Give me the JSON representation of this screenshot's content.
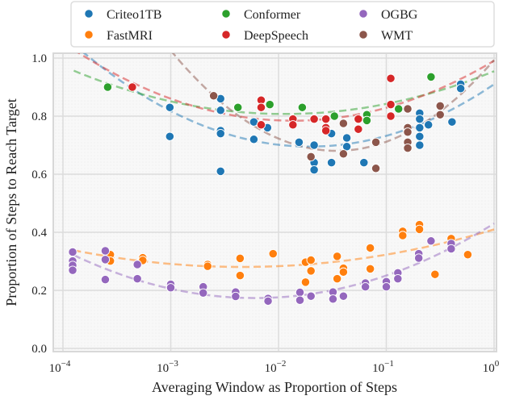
{
  "chart_data": {
    "type": "scatter",
    "xlabel": "Averaging Window as Proportion of Steps",
    "ylabel": "Proportion of Steps to Reach Target",
    "xscale": "log",
    "xlim": [
      8e-05,
      1.0
    ],
    "ylim": [
      0.0,
      1.0
    ],
    "xticks": [
      {
        "value": 0.0001,
        "base": "10",
        "exp": "−4"
      },
      {
        "value": 0.001,
        "base": "10",
        "exp": "−3"
      },
      {
        "value": 0.01,
        "base": "10",
        "exp": "−2"
      },
      {
        "value": 0.1,
        "base": "10",
        "exp": "−1"
      },
      {
        "value": 1,
        "base": "10",
        "exp": "0"
      }
    ],
    "yticks": [
      "0.0",
      "0.2",
      "0.4",
      "0.6",
      "0.8",
      "1.0"
    ],
    "grid": true,
    "legend_placement": "top",
    "trendlines": "dashed quadratic fit in log10(x) per series",
    "series": [
      {
        "name": "Criteo1TB",
        "color": "#1f77b4",
        "points": [
          [
            0.00098,
            0.83
          ],
          [
            0.00098,
            0.73
          ],
          [
            0.0029,
            0.86
          ],
          [
            0.0029,
            0.82
          ],
          [
            0.0029,
            0.75
          ],
          [
            0.0029,
            0.74
          ],
          [
            0.0029,
            0.61
          ],
          [
            0.0059,
            0.78
          ],
          [
            0.0059,
            0.72
          ],
          [
            0.0079,
            0.76
          ],
          [
            0.0155,
            0.71
          ],
          [
            0.0214,
            0.79
          ],
          [
            0.0214,
            0.7
          ],
          [
            0.0214,
            0.64
          ],
          [
            0.0214,
            0.615
          ],
          [
            0.031,
            0.74
          ],
          [
            0.031,
            0.64
          ],
          [
            0.043,
            0.725
          ],
          [
            0.043,
            0.695
          ],
          [
            0.062,
            0.64
          ],
          [
            0.204,
            0.81
          ],
          [
            0.204,
            0.79
          ],
          [
            0.204,
            0.76
          ],
          [
            0.204,
            0.73
          ],
          [
            0.204,
            0.7
          ],
          [
            0.246,
            0.77
          ],
          [
            0.407,
            0.78
          ],
          [
            0.49,
            0.91
          ],
          [
            0.49,
            0.895
          ]
        ]
      },
      {
        "name": "FastMRI",
        "color": "#ff7f0e",
        "points": [
          [
            0.000275,
            0.323
          ],
          [
            0.000275,
            0.301
          ],
          [
            0.00055,
            0.312
          ],
          [
            0.00055,
            0.303
          ],
          [
            0.0022,
            0.289
          ],
          [
            0.0022,
            0.283
          ],
          [
            0.0044,
            0.31
          ],
          [
            0.0044,
            0.251
          ],
          [
            0.0089,
            0.326
          ],
          [
            0.0178,
            0.297
          ],
          [
            0.0178,
            0.228
          ],
          [
            0.02,
            0.304
          ],
          [
            0.02,
            0.267
          ],
          [
            0.035,
            0.317
          ],
          [
            0.035,
            0.24
          ],
          [
            0.04,
            0.276
          ],
          [
            0.04,
            0.263
          ],
          [
            0.071,
            0.346
          ],
          [
            0.071,
            0.274
          ],
          [
            0.142,
            0.403
          ],
          [
            0.142,
            0.389
          ],
          [
            0.203,
            0.426
          ],
          [
            0.203,
            0.41
          ],
          [
            0.283,
            0.255
          ],
          [
            0.4,
            0.378
          ],
          [
            0.57,
            0.323
          ]
        ]
      },
      {
        "name": "Conformer",
        "color": "#2ca02c",
        "points": [
          [
            0.00026,
            0.9
          ],
          [
            0.0042,
            0.83
          ],
          [
            0.0083,
            0.84
          ],
          [
            0.0166,
            0.83
          ],
          [
            0.033,
            0.8
          ],
          [
            0.066,
            0.805
          ],
          [
            0.066,
            0.785
          ],
          [
            0.13,
            0.825
          ],
          [
            0.26,
            0.935
          ]
        ]
      },
      {
        "name": "DeepSpeech",
        "color": "#d62728",
        "points": [
          [
            0.00044,
            0.9
          ],
          [
            0.0069,
            0.855
          ],
          [
            0.0069,
            0.83
          ],
          [
            0.0069,
            0.77
          ],
          [
            0.0136,
            0.79
          ],
          [
            0.0136,
            0.77
          ],
          [
            0.0214,
            0.79
          ],
          [
            0.0275,
            0.79
          ],
          [
            0.0275,
            0.76
          ],
          [
            0.0275,
            0.75
          ],
          [
            0.055,
            0.79
          ],
          [
            0.055,
            0.755
          ],
          [
            0.11,
            0.93
          ],
          [
            0.11,
            0.84
          ],
          [
            0.11,
            0.8
          ]
        ]
      },
      {
        "name": "OGBG",
        "color": "#9467bd",
        "points": [
          [
            0.000123,
            0.332
          ],
          [
            0.000123,
            0.301
          ],
          [
            0.000123,
            0.286
          ],
          [
            0.000123,
            0.269
          ],
          [
            0.000247,
            0.336
          ],
          [
            0.000247,
            0.306
          ],
          [
            0.000247,
            0.237
          ],
          [
            0.00049,
            0.289
          ],
          [
            0.00049,
            0.24
          ],
          [
            0.001,
            0.221
          ],
          [
            0.001,
            0.209
          ],
          [
            0.002,
            0.212
          ],
          [
            0.002,
            0.191
          ],
          [
            0.004,
            0.194
          ],
          [
            0.004,
            0.179
          ],
          [
            0.008,
            0.172
          ],
          [
            0.008,
            0.163
          ],
          [
            0.0158,
            0.193
          ],
          [
            0.0158,
            0.166
          ],
          [
            0.02,
            0.18
          ],
          [
            0.032,
            0.194
          ],
          [
            0.032,
            0.17
          ],
          [
            0.04,
            0.18
          ],
          [
            0.064,
            0.225
          ],
          [
            0.064,
            0.212
          ],
          [
            0.1,
            0.23
          ],
          [
            0.1,
            0.212
          ],
          [
            0.128,
            0.26
          ],
          [
            0.128,
            0.24
          ],
          [
            0.2,
            0.326
          ],
          [
            0.2,
            0.311
          ],
          [
            0.26,
            0.37
          ],
          [
            0.4,
            0.361
          ],
          [
            0.4,
            0.343
          ]
        ]
      },
      {
        "name": "WMT",
        "color": "#8c564b",
        "points": [
          [
            0.0025,
            0.87
          ],
          [
            0.02,
            0.66
          ],
          [
            0.04,
            0.775
          ],
          [
            0.04,
            0.67
          ],
          [
            0.08,
            0.71
          ],
          [
            0.08,
            0.62
          ],
          [
            0.158,
            0.825
          ],
          [
            0.158,
            0.76
          ],
          [
            0.158,
            0.745
          ],
          [
            0.158,
            0.71
          ],
          [
            0.158,
            0.69
          ],
          [
            0.316,
            0.835
          ],
          [
            0.316,
            0.805
          ]
        ]
      }
    ]
  }
}
